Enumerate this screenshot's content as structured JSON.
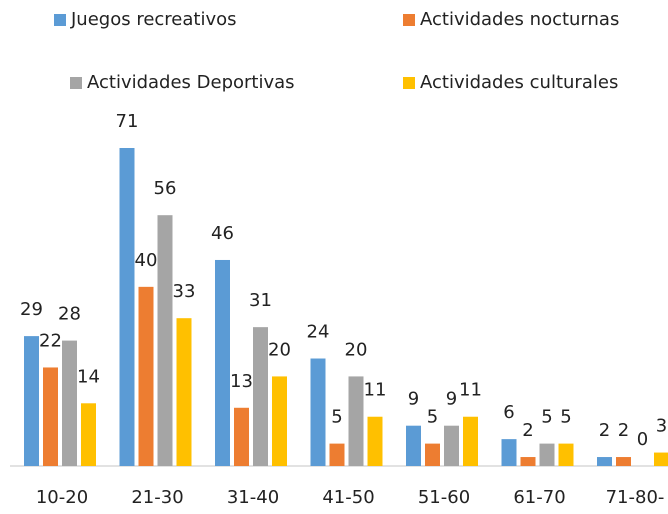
{
  "chart_data": {
    "type": "bar",
    "categories": [
      "10-20",
      "21-30",
      "31-40",
      "41-50",
      "51-60",
      "61-70",
      "71-80-"
    ],
    "series": [
      {
        "name": "Juegos recreativos",
        "color": "#5b9bd5",
        "values": [
          29,
          71,
          46,
          24,
          9,
          6,
          2
        ]
      },
      {
        "name": "Actividades nocturnas",
        "color": "#ed7d31",
        "values": [
          22,
          40,
          13,
          5,
          5,
          2,
          2
        ]
      },
      {
        "name": "Actividades Deportivas",
        "color": "#a5a5a5",
        "values": [
          28,
          56,
          31,
          20,
          9,
          5,
          0
        ]
      },
      {
        "name": "Actividades culturales",
        "color": "#ffc000",
        "values": [
          14,
          33,
          20,
          11,
          11,
          5,
          3
        ]
      }
    ],
    "legend": "top"
  }
}
